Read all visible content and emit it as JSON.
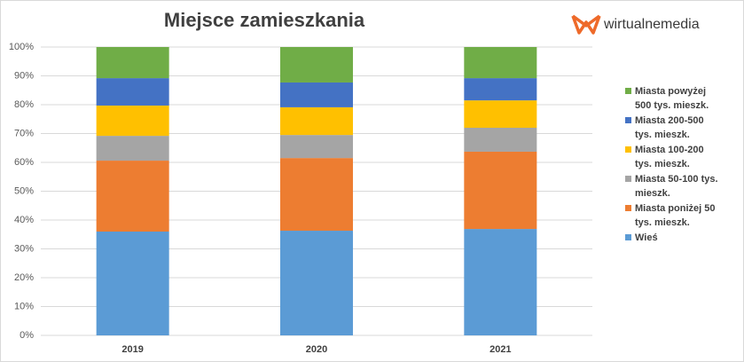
{
  "brand": "wirtualnemedia",
  "chart_data": {
    "type": "stacked_bar",
    "title": "Miejsce zamieszkania",
    "categories": [
      "2019",
      "2020",
      "2021"
    ],
    "series": [
      {
        "name": "Wieś",
        "color": "#5b9bd5",
        "values": [
          36,
          36.3,
          36.9
        ]
      },
      {
        "name": "Miasta poniżej 50 tys. mieszk.",
        "color": "#ed7d31",
        "values": [
          24.6,
          25.2,
          26.8
        ]
      },
      {
        "name": "Miasta 50-100 tys. mieszk.",
        "color": "#a5a5a5",
        "values": [
          8.6,
          8,
          8.3
        ]
      },
      {
        "name": "Miasta 100-200 tys. mieszk.",
        "color": "#ffc000",
        "values": [
          10.5,
          9.6,
          9.5
        ]
      },
      {
        "name": "Miasta 200-500 tys. mieszk.",
        "color": "#4472c4",
        "values": [
          9.5,
          8.6,
          7.7
        ]
      },
      {
        "name": "Miasta powyżej 500 tys. mieszk.",
        "color": "#70ad47",
        "values": [
          10.8,
          12.3,
          10.8
        ]
      }
    ],
    "ylim": [
      0,
      100
    ],
    "yticks": [
      {
        "value": 0,
        "label": "0%"
      },
      {
        "value": 10,
        "label": "10%"
      },
      {
        "value": 20,
        "label": "20%"
      },
      {
        "value": 30,
        "label": "30%"
      },
      {
        "value": 40,
        "label": "40%"
      },
      {
        "value": 50,
        "label": "50%"
      },
      {
        "value": 60,
        "label": "60%"
      },
      {
        "value": 70,
        "label": "70%"
      },
      {
        "value": 80,
        "label": "80%"
      },
      {
        "value": 90,
        "label": "90%"
      },
      {
        "value": 100,
        "label": "100%"
      }
    ],
    "grid": true,
    "legend": "right"
  }
}
